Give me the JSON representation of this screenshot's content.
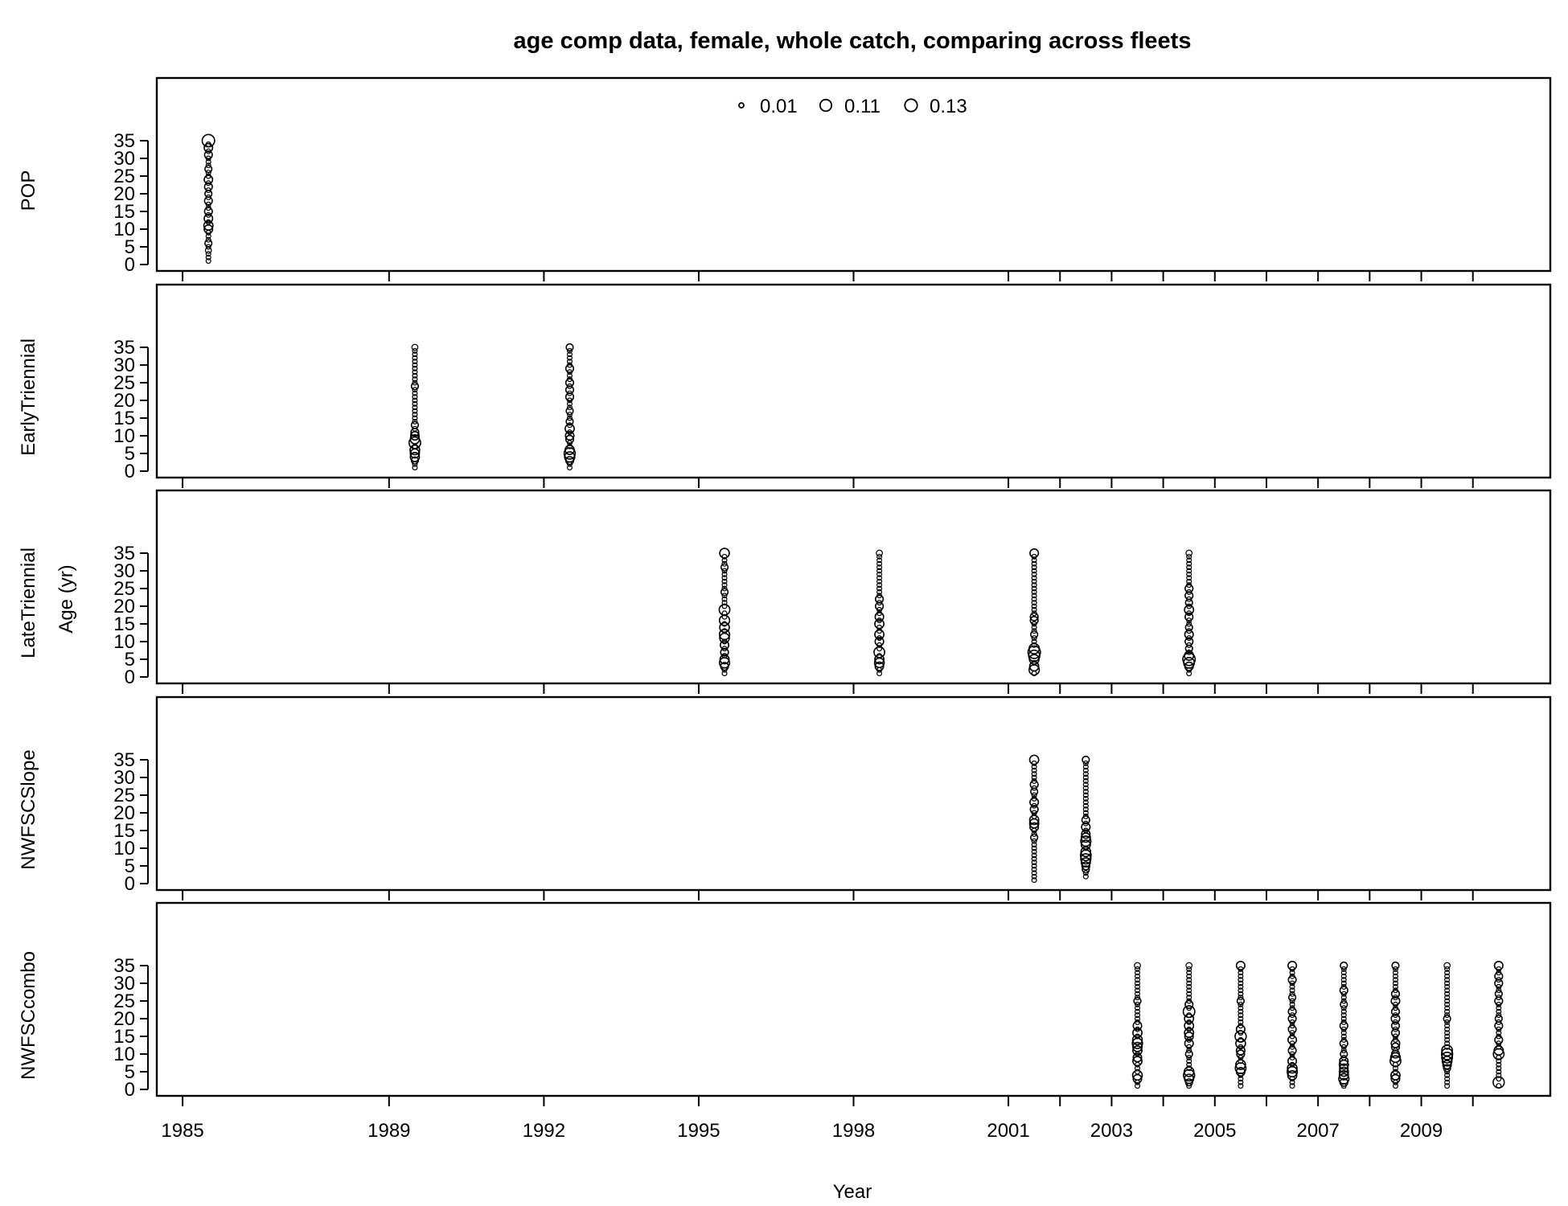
{
  "chart_data": {
    "type": "scatter",
    "title": "age comp data, female, whole catch, comparing across fleets",
    "xlabel": "Year",
    "ylabel": "Age (yr)",
    "xlim": [
      1984.5,
      2011.5
    ],
    "ylim": [
      0,
      35
    ],
    "x_ticks": [
      1985,
      1989,
      1992,
      1995,
      1998,
      2001,
      2002,
      2003,
      2004,
      2005,
      2006,
      2007,
      2008,
      2009,
      2010
    ],
    "x_tick_labels": [
      1985,
      1989,
      1992,
      1995,
      1998,
      2001,
      2003,
      2005,
      2007,
      2009
    ],
    "y_ticks": [
      0,
      5,
      10,
      15,
      20,
      25,
      30,
      35
    ],
    "grid": false,
    "legend": {
      "position": "top-center",
      "entries": [
        {
          "label": "0.01",
          "value": 0.01
        },
        {
          "label": "0.11",
          "value": 0.11
        },
        {
          "label": "0.13",
          "value": 0.13
        }
      ]
    },
    "panels": [
      {
        "name": "POP",
        "years": [
          {
            "x": 1985.5,
            "min_age": 1,
            "max_age": 35,
            "peaks": [
              [
                35,
                0.13
              ],
              [
                33,
                0.05
              ],
              [
                31,
                0.04
              ],
              [
                27,
                0.03
              ],
              [
                24,
                0.05
              ],
              [
                22,
                0.04
              ],
              [
                20,
                0.03
              ],
              [
                18,
                0.04
              ],
              [
                15,
                0.04
              ],
              [
                13,
                0.05
              ],
              [
                11,
                0.06
              ],
              [
                10,
                0.05
              ],
              [
                6,
                0.03
              ],
              [
                4,
                0.02
              ]
            ]
          }
        ]
      },
      {
        "name": "EarlyTriennial",
        "years": [
          {
            "x": 1989.5,
            "min_age": 1,
            "max_age": 35,
            "peaks": [
              [
                35,
                0.02
              ],
              [
                24,
                0.03
              ],
              [
                13,
                0.03
              ],
              [
                11,
                0.04
              ],
              [
                10,
                0.05
              ],
              [
                9,
                0.06
              ],
              [
                8,
                0.11
              ],
              [
                6,
                0.07
              ],
              [
                5,
                0.06
              ],
              [
                4,
                0.06
              ],
              [
                3,
                0.03
              ]
            ]
          },
          {
            "x": 1992.5,
            "min_age": 1,
            "max_age": 35,
            "peaks": [
              [
                35,
                0.03
              ],
              [
                29,
                0.04
              ],
              [
                25,
                0.04
              ],
              [
                23,
                0.04
              ],
              [
                21,
                0.04
              ],
              [
                17,
                0.03
              ],
              [
                14,
                0.03
              ],
              [
                12,
                0.06
              ],
              [
                10,
                0.05
              ],
              [
                9,
                0.04
              ],
              [
                6,
                0.06
              ],
              [
                5,
                0.1
              ],
              [
                4,
                0.08
              ],
              [
                3,
                0.04
              ]
            ]
          }
        ]
      },
      {
        "name": "LateTriennial",
        "years": [
          {
            "x": 1995.5,
            "min_age": 1,
            "max_age": 35,
            "peaks": [
              [
                35,
                0.07
              ],
              [
                31,
                0.03
              ],
              [
                24,
                0.03
              ],
              [
                19,
                0.09
              ],
              [
                16,
                0.08
              ],
              [
                14,
                0.07
              ],
              [
                12,
                0.08
              ],
              [
                11,
                0.07
              ],
              [
                9,
                0.05
              ],
              [
                7,
                0.04
              ],
              [
                5,
                0.06
              ],
              [
                4,
                0.08
              ],
              [
                3,
                0.04
              ]
            ]
          },
          {
            "x": 1998.5,
            "min_age": 1,
            "max_age": 35,
            "peaks": [
              [
                35,
                0.02
              ],
              [
                22,
                0.04
              ],
              [
                20,
                0.04
              ],
              [
                17,
                0.05
              ],
              [
                15,
                0.06
              ],
              [
                12,
                0.06
              ],
              [
                10,
                0.05
              ],
              [
                7,
                0.09
              ],
              [
                5,
                0.06
              ],
              [
                4,
                0.07
              ],
              [
                3,
                0.05
              ]
            ]
          },
          {
            "x": 2001.5,
            "min_age": 1,
            "max_age": 35,
            "peaks": [
              [
                35,
                0.05
              ],
              [
                17,
                0.04
              ],
              [
                16,
                0.04
              ],
              [
                12,
                0.03
              ],
              [
                8,
                0.08
              ],
              [
                7,
                0.13
              ],
              [
                6,
                0.1
              ],
              [
                5,
                0.07
              ],
              [
                3,
                0.06
              ],
              [
                2,
                0.08
              ]
            ]
          },
          {
            "x": 2004.5,
            "min_age": 1,
            "max_age": 35,
            "peaks": [
              [
                35,
                0.02
              ],
              [
                25,
                0.04
              ],
              [
                23,
                0.04
              ],
              [
                21,
                0.03
              ],
              [
                19,
                0.06
              ],
              [
                17,
                0.04
              ],
              [
                14,
                0.03
              ],
              [
                12,
                0.05
              ],
              [
                10,
                0.04
              ],
              [
                8,
                0.03
              ],
              [
                6,
                0.06
              ],
              [
                5,
                0.13
              ],
              [
                4,
                0.09
              ],
              [
                3,
                0.05
              ]
            ]
          }
        ]
      },
      {
        "name": "NWFSCSlope",
        "years": [
          {
            "x": 2001.5,
            "min_age": 1,
            "max_age": 35,
            "peaks": [
              [
                35,
                0.06
              ],
              [
                28,
                0.04
              ],
              [
                26,
                0.03
              ],
              [
                23,
                0.05
              ],
              [
                21,
                0.04
              ],
              [
                18,
                0.06
              ],
              [
                17,
                0.06
              ],
              [
                16,
                0.05
              ],
              [
                13,
                0.03
              ]
            ]
          },
          {
            "x": 2002.5,
            "min_age": 2,
            "max_age": 35,
            "peaks": [
              [
                35,
                0.03
              ],
              [
                18,
                0.04
              ],
              [
                16,
                0.05
              ],
              [
                14,
                0.05
              ],
              [
                13,
                0.06
              ],
              [
                12,
                0.08
              ],
              [
                11,
                0.06
              ],
              [
                9,
                0.07
              ],
              [
                8,
                0.09
              ],
              [
                7,
                0.08
              ],
              [
                6,
                0.06
              ],
              [
                5,
                0.04
              ],
              [
                4,
                0.03
              ]
            ]
          }
        ]
      },
      {
        "name": "NWFSCcombo",
        "years": [
          {
            "x": 2003.5,
            "min_age": 1,
            "max_age": 35,
            "peaks": [
              [
                35,
                0.02
              ],
              [
                25,
                0.03
              ],
              [
                18,
                0.05
              ],
              [
                16,
                0.06
              ],
              [
                14,
                0.07
              ],
              [
                13,
                0.08
              ],
              [
                12,
                0.06
              ],
              [
                11,
                0.06
              ],
              [
                9,
                0.05
              ],
              [
                8,
                0.06
              ],
              [
                4,
                0.07
              ],
              [
                3,
                0.05
              ]
            ]
          },
          {
            "x": 2004.5,
            "min_age": 1,
            "max_age": 35,
            "peaks": [
              [
                35,
                0.02
              ],
              [
                24,
                0.04
              ],
              [
                22,
                0.11
              ],
              [
                20,
                0.06
              ],
              [
                18,
                0.06
              ],
              [
                16,
                0.06
              ],
              [
                15,
                0.05
              ],
              [
                13,
                0.05
              ],
              [
                10,
                0.03
              ],
              [
                5,
                0.07
              ],
              [
                4,
                0.1
              ],
              [
                3,
                0.06
              ],
              [
                2,
                0.03
              ]
            ]
          },
          {
            "x": 2005.5,
            "min_age": 1,
            "max_age": 35,
            "peaks": [
              [
                35,
                0.05
              ],
              [
                25,
                0.03
              ],
              [
                17,
                0.05
              ],
              [
                15,
                0.1
              ],
              [
                13,
                0.07
              ],
              [
                11,
                0.05
              ],
              [
                10,
                0.04
              ],
              [
                7,
                0.07
              ],
              [
                6,
                0.09
              ],
              [
                5,
                0.05
              ]
            ]
          },
          {
            "x": 2006.5,
            "min_age": 1,
            "max_age": 35,
            "peaks": [
              [
                35,
                0.05
              ],
              [
                31,
                0.04
              ],
              [
                26,
                0.03
              ],
              [
                22,
                0.04
              ],
              [
                20,
                0.04
              ],
              [
                17,
                0.04
              ],
              [
                14,
                0.05
              ],
              [
                11,
                0.04
              ],
              [
                8,
                0.05
              ],
              [
                6,
                0.07
              ],
              [
                5,
                0.08
              ],
              [
                4,
                0.06
              ]
            ]
          },
          {
            "x": 2007.5,
            "min_age": 1,
            "max_age": 35,
            "peaks": [
              [
                35,
                0.03
              ],
              [
                28,
                0.04
              ],
              [
                24,
                0.03
              ],
              [
                18,
                0.04
              ],
              [
                13,
                0.04
              ],
              [
                10,
                0.03
              ],
              [
                8,
                0.05
              ],
              [
                7,
                0.06
              ],
              [
                6,
                0.05
              ],
              [
                5,
                0.06
              ],
              [
                4,
                0.06
              ],
              [
                3,
                0.08
              ],
              [
                2,
                0.04
              ]
            ]
          },
          {
            "x": 2008.5,
            "min_age": 1,
            "max_age": 35,
            "peaks": [
              [
                35,
                0.03
              ],
              [
                27,
                0.04
              ],
              [
                25,
                0.05
              ],
              [
                22,
                0.04
              ],
              [
                20,
                0.05
              ],
              [
                18,
                0.04
              ],
              [
                16,
                0.04
              ],
              [
                13,
                0.05
              ],
              [
                12,
                0.04
              ],
              [
                10,
                0.04
              ],
              [
                9,
                0.07
              ],
              [
                8,
                0.09
              ],
              [
                4,
                0.06
              ],
              [
                3,
                0.05
              ]
            ]
          },
          {
            "x": 2009.5,
            "min_age": 1,
            "max_age": 35,
            "peaks": [
              [
                35,
                0.02
              ],
              [
                20,
                0.03
              ],
              [
                11,
                0.09
              ],
              [
                10,
                0.1
              ],
              [
                9,
                0.09
              ],
              [
                8,
                0.07
              ],
              [
                7,
                0.05
              ],
              [
                6,
                0.03
              ]
            ]
          },
          {
            "x": 2010.5,
            "min_age": 1,
            "max_age": 35,
            "peaks": [
              [
                35,
                0.05
              ],
              [
                32,
                0.04
              ],
              [
                30,
                0.04
              ],
              [
                27,
                0.03
              ],
              [
                25,
                0.04
              ],
              [
                20,
                0.03
              ],
              [
                18,
                0.04
              ],
              [
                14,
                0.04
              ],
              [
                11,
                0.06
              ],
              [
                10,
                0.09
              ],
              [
                2,
                0.1
              ]
            ]
          }
        ]
      }
    ]
  }
}
